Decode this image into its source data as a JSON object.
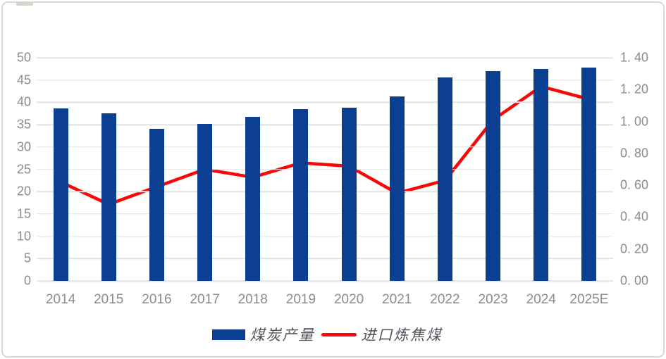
{
  "chart_data": {
    "type": "bar",
    "subtype": "combo-bar-line-dual-axis",
    "title": "",
    "categories": [
      "2014",
      "2015",
      "2016",
      "2017",
      "2018",
      "2019",
      "2020",
      "2021",
      "2022",
      "2023",
      "2024",
      "2025E"
    ],
    "series": [
      {
        "name": "煤炭产量",
        "type": "bar",
        "axis": "left",
        "color": "#0c3f92",
        "values": [
          38.7,
          37.5,
          34.1,
          35.2,
          36.8,
          38.5,
          38.8,
          41.3,
          45.6,
          47.0,
          47.5,
          47.8
        ]
      },
      {
        "name": "进口炼焦煤",
        "type": "line",
        "axis": "right",
        "color": "#f90606",
        "values": [
          0.62,
          0.48,
          0.59,
          0.7,
          0.65,
          0.74,
          0.72,
          0.55,
          0.63,
          1.01,
          1.22,
          1.14
        ]
      }
    ],
    "left_axis": {
      "min": 0,
      "max": 50,
      "step": 5,
      "ticks": [
        "50",
        "45",
        "40",
        "35",
        "30",
        "25",
        "20",
        "15",
        "10",
        "5",
        "0"
      ]
    },
    "right_axis": {
      "min": 0,
      "max": 1.4,
      "step": 0.2,
      "ticks": [
        "1. 40",
        "1. 20",
        "1. 00",
        "0. 80",
        "0. 60",
        "0. 40",
        "0. 20",
        "0. 00"
      ]
    },
    "grid": true,
    "legend_position": "bottom"
  },
  "legend": {
    "items": [
      {
        "label": "煤炭产量",
        "swatch": "bar",
        "color": "#0c3f92"
      },
      {
        "label": "进口炼焦煤",
        "swatch": "line",
        "color": "#f90606"
      }
    ]
  },
  "colors": {
    "bar_blue": "#0c3f92",
    "line_red": "#f90606",
    "tick_gray": "#8b8b92",
    "gridline": "#e3e3e3",
    "frame_border": "#d8d8d3",
    "background": "#ffffff"
  }
}
